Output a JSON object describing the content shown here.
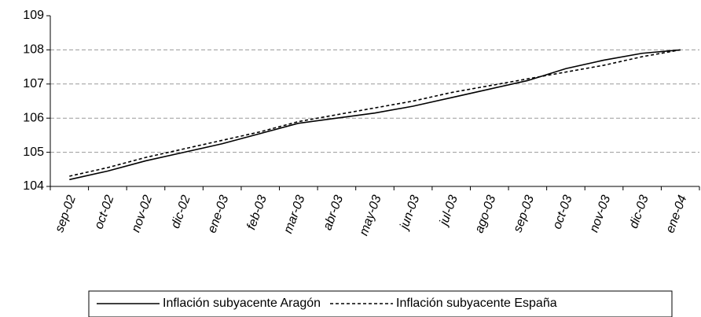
{
  "chart_data": {
    "type": "line",
    "categories": [
      "sep-02",
      "oct-02",
      "nov-02",
      "dic-02",
      "ene-03",
      "feb-03",
      "mar-03",
      "abr-03",
      "may-03",
      "jun-03",
      "jul-03",
      "ago-03",
      "sep-03",
      "oct-03",
      "nov-03",
      "dic-03",
      "ene-04"
    ],
    "series": [
      {
        "name": "Inflación subyacente Aragón",
        "color": "#000000",
        "style": "solid",
        "values": [
          104.2,
          104.45,
          104.75,
          105.0,
          105.25,
          105.55,
          105.85,
          106.0,
          106.15,
          106.35,
          106.6,
          106.85,
          107.1,
          107.45,
          107.7,
          107.9,
          108.0
        ]
      },
      {
        "name": "Inflación subyacente España",
        "color": "#000000",
        "style": "dashed",
        "values": [
          104.3,
          104.55,
          104.85,
          105.1,
          105.35,
          105.6,
          105.9,
          106.1,
          106.3,
          106.5,
          106.75,
          106.95,
          107.15,
          107.35,
          107.55,
          107.8,
          108.0
        ]
      }
    ],
    "ylim": [
      104,
      109
    ],
    "yticks": [
      104,
      105,
      106,
      107,
      108,
      109
    ],
    "grid": true,
    "legend": "bottom"
  }
}
